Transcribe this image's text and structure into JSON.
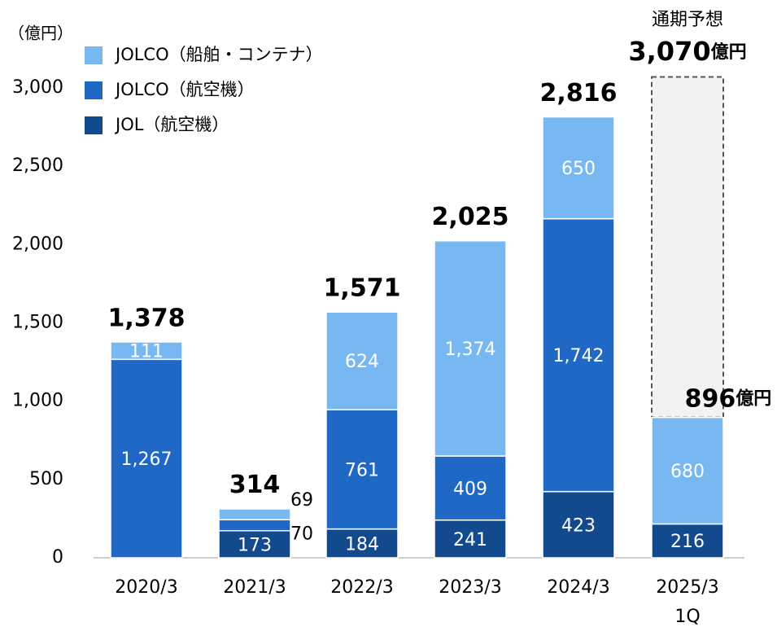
{
  "chart_data": {
    "type": "stacked_bar",
    "y_unit_label": "（億円）",
    "unit": "億円",
    "categories": [
      "2020/3",
      "2021/3",
      "2022/3",
      "2023/3",
      "2024/3",
      "2025/3\n1Q"
    ],
    "series": [
      {
        "name": "JOL（航空機）",
        "color": "#134a8e",
        "values": [
          null,
          173,
          184,
          241,
          423,
          216
        ],
        "value_labels": [
          null,
          "173",
          "184",
          "241",
          "423",
          "216"
        ]
      },
      {
        "name": "JOLCO（航空機）",
        "color": "#1f68c6",
        "values": [
          1267,
          70,
          761,
          409,
          1742,
          null
        ],
        "value_labels": [
          "1,267",
          "70",
          "761",
          "409",
          "1,742",
          null
        ]
      },
      {
        "name": "JOLCO（船舶・コンテナ）",
        "color": "#78b8f2",
        "values": [
          111,
          69,
          624,
          1374,
          650,
          680
        ],
        "value_labels": [
          "111",
          "69",
          "624",
          "1,374",
          "650",
          "680"
        ]
      }
    ],
    "totals": [
      1378,
      314,
      1571,
      2025,
      2816,
      896
    ],
    "total_labels": [
      "1,378",
      "314",
      "1,571",
      "2,025",
      "2,816",
      "896"
    ],
    "forecast": {
      "label": "通期予想",
      "value": 3070,
      "value_label": "3,070"
    },
    "ylim": [
      0,
      3000
    ],
    "yticks": [
      0,
      500,
      {
        "value": 1000,
        "label": "1,000"
      },
      {
        "value": 1500,
        "label": "1,500"
      },
      {
        "value": 2000,
        "label": "2,000"
      },
      {
        "value": 2500,
        "label": "2,500"
      },
      {
        "value": 3000,
        "label": "3,000"
      }
    ]
  }
}
